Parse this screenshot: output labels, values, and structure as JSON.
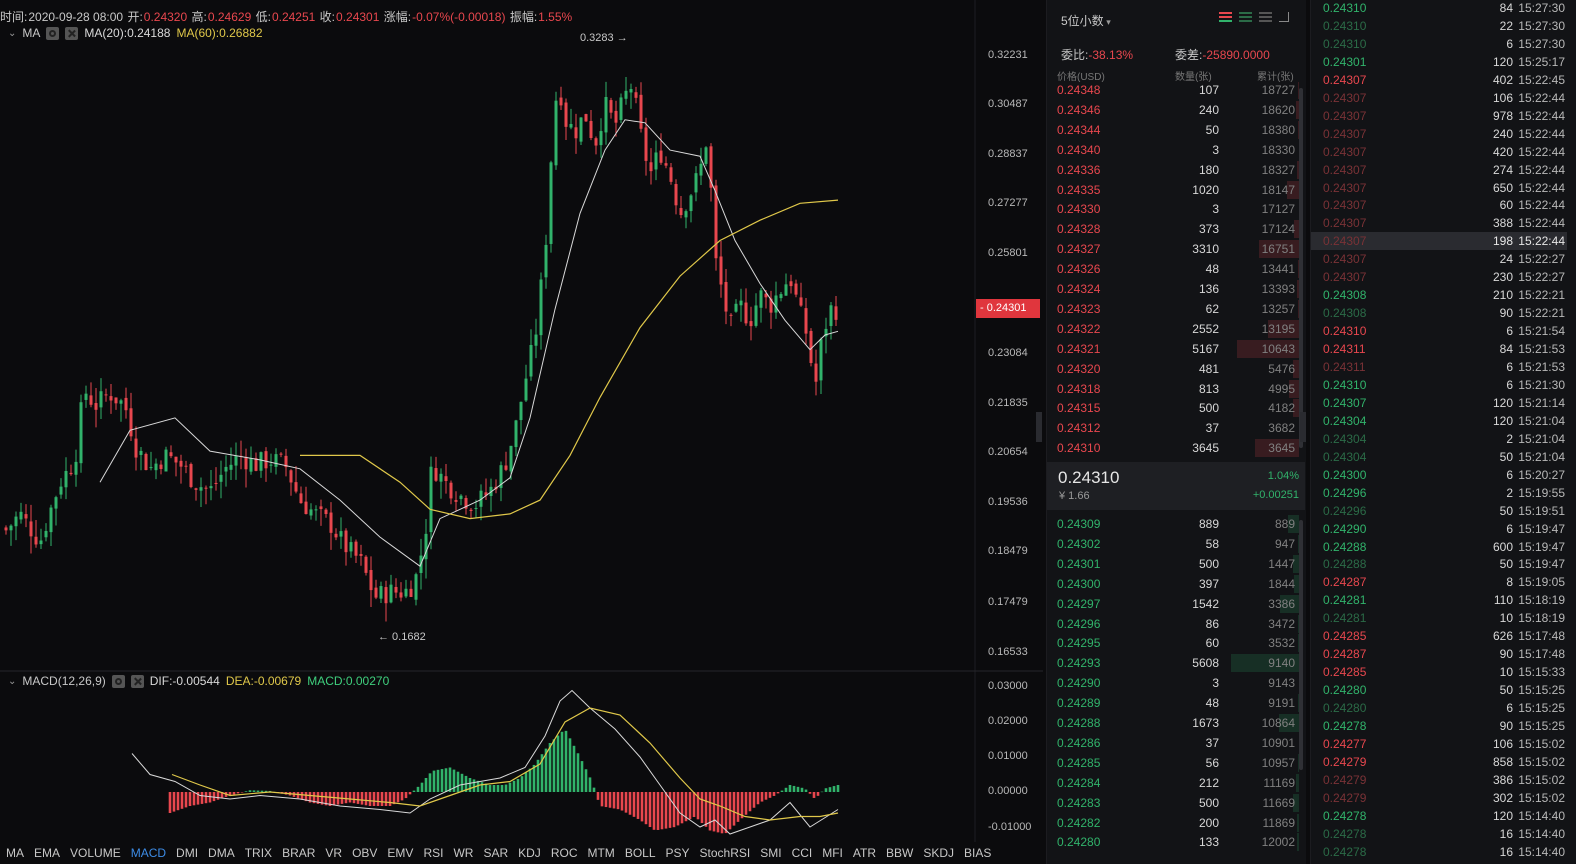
{
  "header": {
    "time_label": "时间:",
    "time": "2020-09-28 08:00",
    "open_label": "开:",
    "open": "0.24320",
    "high_label": "高:",
    "high": "0.24629",
    "low_label": "低:",
    "low": "0.24251",
    "close_label": "收:",
    "close": "0.24301",
    "change_label": "涨幅:",
    "change": "-0.07%(-0.00018)",
    "amp_label": "振幅:",
    "amp": "1.55%"
  },
  "ma_indicator": {
    "name": "MA",
    "ma20": "MA(20):0.24188",
    "ma60": "MA(60):0.26882"
  },
  "macd_indicator": {
    "name": "MACD(12,26,9)",
    "dif": "DIF:-0.00544",
    "dea": "DEA:-0.00679",
    "macd": "MACD:0.00270"
  },
  "price_axis": [
    "0.32231",
    "0.30487",
    "0.28837",
    "0.27277",
    "0.25801",
    "0.23084",
    "0.21835",
    "0.20654",
    "0.19536",
    "0.18479",
    "0.17479",
    "0.16533"
  ],
  "current_price_tag": "0.24301",
  "max_label": "0.3283 →",
  "min_label": "← 0.1682",
  "macd_axis": [
    "0.03000",
    "0.02000",
    "0.01000",
    "0.00000",
    "-0.01000"
  ],
  "indicator_tabs": [
    "MA",
    "EMA",
    "VOLUME",
    "MACD",
    "DMI",
    "DMA",
    "TRIX",
    "BRAR",
    "VR",
    "OBV",
    "EMV",
    "RSI",
    "WR",
    "SAR",
    "KDJ",
    "ROC",
    "MTM",
    "BOLL",
    "PSY",
    "StochRSI",
    "SMI",
    "CCI",
    "MFI",
    "ATR",
    "BBW",
    "SKDJ",
    "BIAS"
  ],
  "active_tab": "MACD",
  "colors": {
    "up": "#31b36b",
    "down": "#e8474e",
    "accent": "#3d8ce6",
    "ma20": "#d9d9d9",
    "ma60": "#e0c84a"
  },
  "orderbook": {
    "decimals": "5位小数",
    "ratio_label": "委比:",
    "ratio": "-38.13%",
    "diff_label": "委差:",
    "diff": "-25890.0000",
    "col_price": "价格(USD)",
    "col_qty": "数量(张)",
    "col_cum": "累计(张)",
    "asks": [
      [
        "0.24348",
        "107",
        "18727"
      ],
      [
        "0.24346",
        "240",
        "18620"
      ],
      [
        "0.24344",
        "50",
        "18380"
      ],
      [
        "0.24340",
        "3",
        "18330"
      ],
      [
        "0.24336",
        "180",
        "18327"
      ],
      [
        "0.24335",
        "1020",
        "18147"
      ],
      [
        "0.24330",
        "3",
        "17127"
      ],
      [
        "0.24328",
        "373",
        "17124"
      ],
      [
        "0.24327",
        "3310",
        "16751"
      ],
      [
        "0.24326",
        "48",
        "13441"
      ],
      [
        "0.24324",
        "136",
        "13393"
      ],
      [
        "0.24323",
        "62",
        "13257"
      ],
      [
        "0.24322",
        "2552",
        "13195"
      ],
      [
        "0.24321",
        "5167",
        "10643"
      ],
      [
        "0.24320",
        "481",
        "5476"
      ],
      [
        "0.24318",
        "813",
        "4995"
      ],
      [
        "0.24315",
        "500",
        "4182"
      ],
      [
        "0.24312",
        "37",
        "3682"
      ],
      [
        "0.24310",
        "3645",
        "3645"
      ]
    ],
    "last_price": "0.24310",
    "last_cny": "¥ 1.66",
    "last_pct": "1.04%",
    "last_change": "+0.00251",
    "bids": [
      [
        "0.24309",
        "889",
        "889"
      ],
      [
        "0.24302",
        "58",
        "947"
      ],
      [
        "0.24301",
        "500",
        "1447"
      ],
      [
        "0.24300",
        "397",
        "1844"
      ],
      [
        "0.24297",
        "1542",
        "3386"
      ],
      [
        "0.24296",
        "86",
        "3472"
      ],
      [
        "0.24295",
        "60",
        "3532"
      ],
      [
        "0.24293",
        "5608",
        "9140"
      ],
      [
        "0.24290",
        "3",
        "9143"
      ],
      [
        "0.24289",
        "48",
        "9191"
      ],
      [
        "0.24288",
        "1673",
        "10864"
      ],
      [
        "0.24286",
        "37",
        "10901"
      ],
      [
        "0.24285",
        "56",
        "10957"
      ],
      [
        "0.24284",
        "212",
        "11169"
      ],
      [
        "0.24283",
        "500",
        "11669"
      ],
      [
        "0.24282",
        "200",
        "11869"
      ],
      [
        "0.24280",
        "133",
        "12002"
      ]
    ]
  },
  "trades": [
    [
      "0.24310",
      "84",
      "15:27:30",
      "g"
    ],
    [
      "0.24310",
      "22",
      "15:27:30",
      "dg"
    ],
    [
      "0.24310",
      "6",
      "15:27:30",
      "dg"
    ],
    [
      "0.24301",
      "120",
      "15:25:17",
      "g"
    ],
    [
      "0.24307",
      "402",
      "15:22:45",
      "r"
    ],
    [
      "0.24307",
      "106",
      "15:22:44",
      "dr"
    ],
    [
      "0.24307",
      "978",
      "15:22:44",
      "dr"
    ],
    [
      "0.24307",
      "240",
      "15:22:44",
      "dr"
    ],
    [
      "0.24307",
      "420",
      "15:22:44",
      "dr"
    ],
    [
      "0.24307",
      "274",
      "15:22:44",
      "dr"
    ],
    [
      "0.24307",
      "650",
      "15:22:44",
      "dr"
    ],
    [
      "0.24307",
      "60",
      "15:22:44",
      "dr"
    ],
    [
      "0.24307",
      "388",
      "15:22:44",
      "dr"
    ],
    [
      "0.24307",
      "198",
      "15:22:44",
      "dr"
    ],
    [
      "0.24307",
      "24",
      "15:22:27",
      "dr"
    ],
    [
      "0.24307",
      "230",
      "15:22:27",
      "dr"
    ],
    [
      "0.24308",
      "210",
      "15:22:21",
      "g"
    ],
    [
      "0.24308",
      "90",
      "15:22:21",
      "dg"
    ],
    [
      "0.24310",
      "6",
      "15:21:54",
      "r"
    ],
    [
      "0.24311",
      "84",
      "15:21:53",
      "r"
    ],
    [
      "0.24311",
      "6",
      "15:21:53",
      "dr"
    ],
    [
      "0.24310",
      "6",
      "15:21:30",
      "g"
    ],
    [
      "0.24307",
      "120",
      "15:21:14",
      "g"
    ],
    [
      "0.24304",
      "120",
      "15:21:04",
      "g"
    ],
    [
      "0.24304",
      "2",
      "15:21:04",
      "dg"
    ],
    [
      "0.24304",
      "50",
      "15:21:04",
      "dg"
    ],
    [
      "0.24300",
      "6",
      "15:20:27",
      "g"
    ],
    [
      "0.24296",
      "2",
      "15:19:55",
      "g"
    ],
    [
      "0.24296",
      "50",
      "15:19:51",
      "dg"
    ],
    [
      "0.24290",
      "6",
      "15:19:47",
      "g"
    ],
    [
      "0.24288",
      "600",
      "15:19:47",
      "g"
    ],
    [
      "0.24288",
      "50",
      "15:19:47",
      "dg"
    ],
    [
      "0.24287",
      "8",
      "15:19:05",
      "r"
    ],
    [
      "0.24281",
      "110",
      "15:18:19",
      "g"
    ],
    [
      "0.24281",
      "10",
      "15:18:19",
      "dg"
    ],
    [
      "0.24285",
      "626",
      "15:17:48",
      "r"
    ],
    [
      "0.24287",
      "90",
      "15:17:48",
      "r"
    ],
    [
      "0.24285",
      "10",
      "15:15:33",
      "r"
    ],
    [
      "0.24280",
      "50",
      "15:15:25",
      "g"
    ],
    [
      "0.24280",
      "6",
      "15:15:25",
      "dg"
    ],
    [
      "0.24278",
      "90",
      "15:15:25",
      "g"
    ],
    [
      "0.24277",
      "106",
      "15:15:02",
      "r"
    ],
    [
      "0.24279",
      "858",
      "15:15:02",
      "r"
    ],
    [
      "0.24279",
      "386",
      "15:15:02",
      "dr"
    ],
    [
      "0.24279",
      "302",
      "15:15:02",
      "dr"
    ],
    [
      "0.24278",
      "120",
      "15:14:40",
      "g"
    ],
    [
      "0.24278",
      "16",
      "15:14:40",
      "dg"
    ],
    [
      "0.24278",
      "16",
      "15:14:40",
      "dg"
    ]
  ],
  "trades_highlight_index": 13
}
